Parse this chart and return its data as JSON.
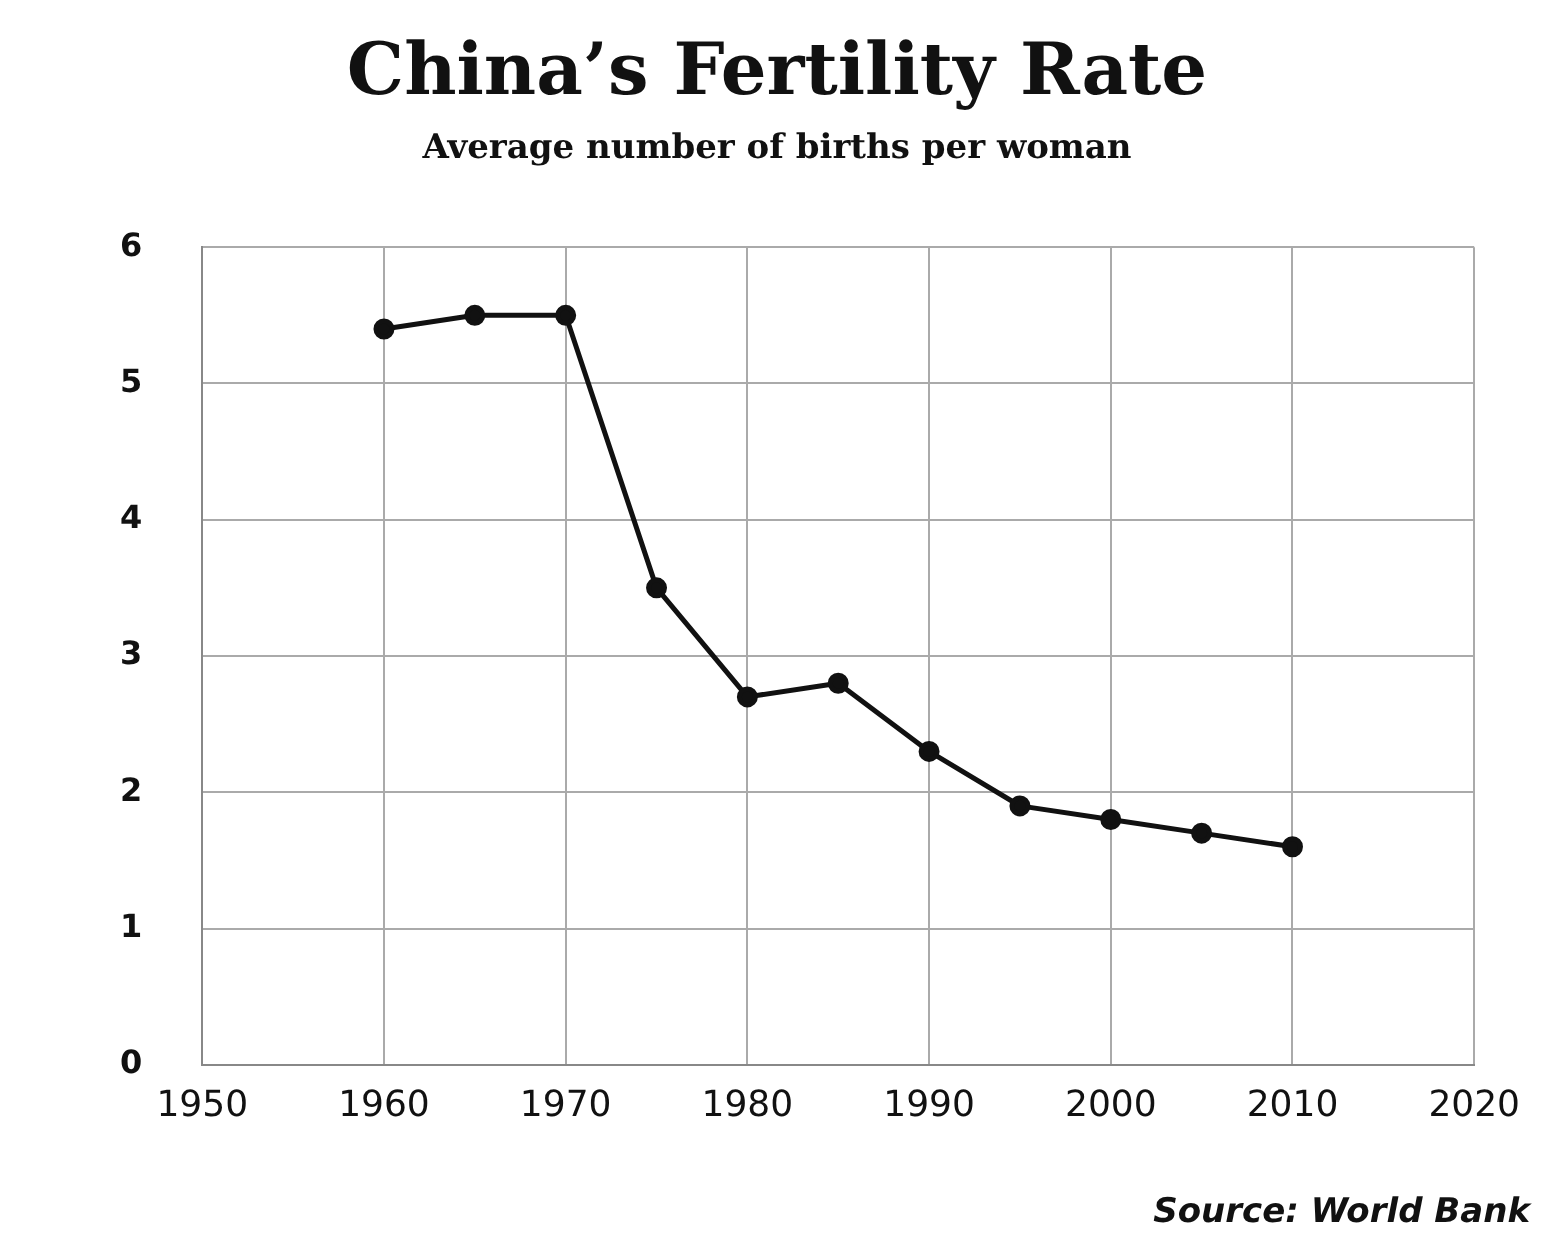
{
  "chart_data": {
    "type": "line",
    "title": "China’s Fertility Rate",
    "subtitle": "Average number of births per woman",
    "x": [
      1960,
      1965,
      1970,
      1975,
      1980,
      1985,
      1990,
      1995,
      2000,
      2005,
      2010
    ],
    "series": [
      {
        "color": "#111111",
        "values": [
          5.4,
          5.5,
          5.5,
          3.5,
          2.7,
          2.8,
          2.3,
          1.9,
          1.8,
          1.7,
          1.6
        ]
      }
    ],
    "xlim": [
      1950,
      2020
    ],
    "xticks": [
      1950,
      1960,
      1970,
      1980,
      1990,
      2000,
      2010,
      2020
    ],
    "ylim": [
      0,
      6
    ],
    "yticks": [
      0,
      1,
      2,
      3,
      4,
      5,
      6
    ],
    "grid": true,
    "legend": false,
    "marker": "circle",
    "line_style": "solid",
    "annotations": [
      "Source: World Bank"
    ]
  }
}
